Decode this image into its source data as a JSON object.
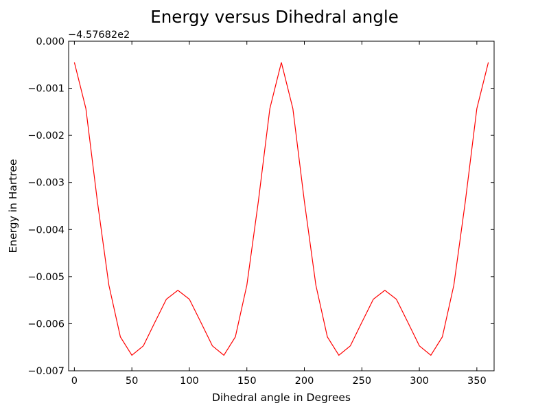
{
  "chart_data": {
    "type": "line",
    "title": "Energy versus Dihedral angle",
    "xlabel": "Dihedral angle in Degrees",
    "ylabel": "Energy in Hartree",
    "y_offset_label": "−4.57682e2",
    "xlim": [
      -5,
      365
    ],
    "ylim": [
      -0.007,
      0.0
    ],
    "x_ticks": [
      0,
      50,
      100,
      150,
      200,
      250,
      300,
      350
    ],
    "x_tick_labels": [
      "0",
      "50",
      "100",
      "150",
      "200",
      "250",
      "300",
      "350"
    ],
    "y_ticks": [
      0.0,
      -0.001,
      -0.002,
      -0.003,
      -0.004,
      -0.005,
      -0.006,
      -0.007
    ],
    "y_tick_labels": [
      "0.000",
      "−0.001",
      "−0.002",
      "−0.003",
      "−0.004",
      "−0.005",
      "−0.006",
      "−0.007"
    ],
    "grid": false,
    "legend": "none",
    "series": [
      {
        "color": "#ff0000",
        "x": [
          0,
          10,
          20,
          30,
          40,
          50,
          60,
          70,
          80,
          90,
          100,
          110,
          120,
          130,
          140,
          150,
          160,
          170,
          180,
          190,
          200,
          210,
          220,
          230,
          240,
          250,
          260,
          270,
          280,
          290,
          300,
          310,
          320,
          330,
          340,
          350,
          360
        ],
        "y": [
          -0.00045,
          -0.00143,
          -0.0034,
          -0.00518,
          -0.00628,
          -0.00667,
          -0.00647,
          -0.00597,
          -0.00548,
          -0.00529,
          -0.00548,
          -0.00597,
          -0.00647,
          -0.00667,
          -0.00628,
          -0.00518,
          -0.0034,
          -0.00143,
          -0.00045,
          -0.00143,
          -0.0034,
          -0.00518,
          -0.00628,
          -0.00667,
          -0.00647,
          -0.00597,
          -0.00548,
          -0.00529,
          -0.00548,
          -0.00597,
          -0.00647,
          -0.00667,
          -0.00628,
          -0.00518,
          -0.0034,
          -0.00143,
          -0.00045
        ]
      }
    ]
  }
}
